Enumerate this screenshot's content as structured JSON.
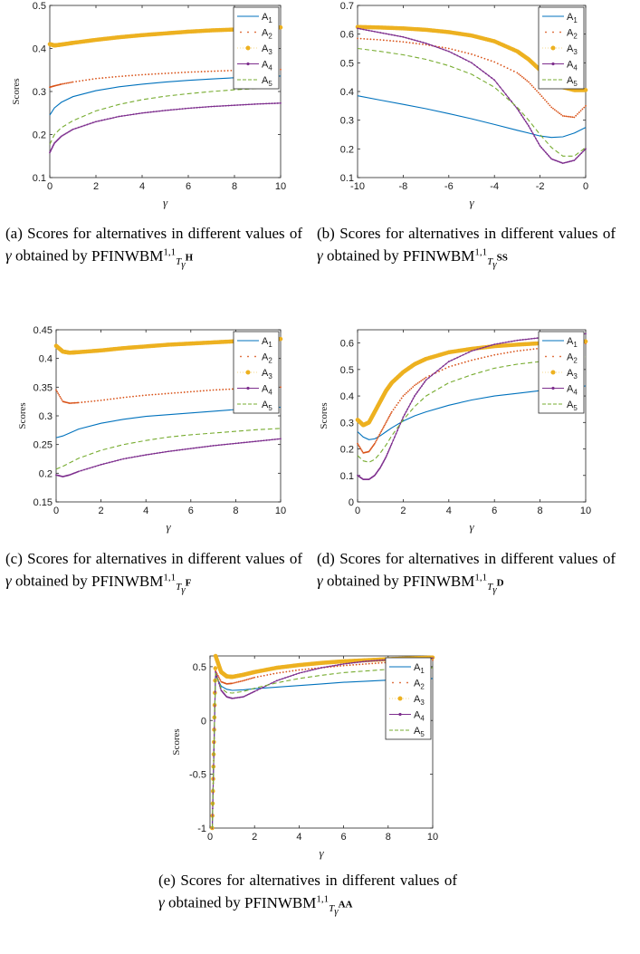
{
  "colors": {
    "A1": "#0072bd",
    "A2": "#d95319",
    "A3": "#edb120",
    "A4": "#7e2f8e",
    "A5": "#77ac30"
  },
  "legend": [
    "A1",
    "A2",
    "A3",
    "A4",
    "A5"
  ],
  "captions": [
    {
      "label": "(a)",
      "text_pre": "Scores for alternatives in different values of",
      "symbol": "γ",
      "text_post": "obtained by",
      "op": "PFINWBM",
      "sup": "1,1",
      "sub": "T",
      "subsub": "γ",
      "subsup": "H"
    },
    {
      "label": "(b)",
      "text_pre": "Scores for alternatives in different values of",
      "symbol": "γ",
      "text_post": "obtained by",
      "op": "PFINWBM",
      "sup": "1,1",
      "sub": "T",
      "subsub": "γ",
      "subsup": "SS"
    },
    {
      "label": "(c)",
      "text_pre": "Scores for alternatives in different values of",
      "symbol": "γ",
      "text_post": "obtained by",
      "op": "PFINWBM",
      "sup": "1,1",
      "sub": "T",
      "subsub": "γ",
      "subsup": "F"
    },
    {
      "label": "(d)",
      "text_pre": "Scores for alternatives in different values of",
      "symbol": "γ",
      "text_post": "obtained by",
      "op": "PFINWBM",
      "sup": "1,1",
      "sub": "T",
      "subsub": "γ",
      "subsup": "D"
    },
    {
      "label": "(e)",
      "text_pre": "Scores for alternatives in different values of",
      "symbol": "γ",
      "text_post": "obtained by",
      "op": "PFINWBM",
      "sup": "1,1",
      "sub": "T",
      "subsub": "γ",
      "subsup": "AA"
    }
  ],
  "chart_data": [
    {
      "type": "line",
      "xlabel": "γ",
      "ylabel": "Scores",
      "xlim": [
        0,
        10
      ],
      "ylim": [
        0.1,
        0.5
      ],
      "xticks": [
        0,
        2,
        4,
        6,
        8,
        10
      ],
      "yticks": [
        0.1,
        0.2,
        0.3,
        0.4,
        0.5
      ],
      "legend_position": "top-right",
      "x": [
        0,
        0.2,
        0.5,
        1,
        2,
        3,
        4,
        5,
        6,
        7,
        8,
        9,
        10
      ],
      "series": [
        {
          "name": "A1",
          "values": [
            0.245,
            0.262,
            0.275,
            0.288,
            0.302,
            0.311,
            0.317,
            0.322,
            0.326,
            0.329,
            0.332,
            0.334,
            0.336
          ]
        },
        {
          "name": "A2",
          "values": [
            0.31,
            0.313,
            0.317,
            0.322,
            0.33,
            0.335,
            0.339,
            0.342,
            0.345,
            0.347,
            0.349,
            0.35,
            0.351
          ]
        },
        {
          "name": "A3",
          "values": [
            0.41,
            0.407,
            0.409,
            0.413,
            0.42,
            0.426,
            0.431,
            0.435,
            0.439,
            0.442,
            0.444,
            0.447,
            0.449
          ]
        },
        {
          "name": "A4",
          "values": [
            0.158,
            0.18,
            0.196,
            0.212,
            0.23,
            0.242,
            0.25,
            0.256,
            0.261,
            0.265,
            0.268,
            0.271,
            0.273
          ]
        },
        {
          "name": "A5",
          "values": [
            0.177,
            0.2,
            0.216,
            0.232,
            0.255,
            0.27,
            0.281,
            0.289,
            0.295,
            0.3,
            0.304,
            0.307,
            0.31
          ]
        }
      ]
    },
    {
      "type": "line",
      "xlabel": "γ",
      "ylabel": "",
      "xlim": [
        -10,
        0
      ],
      "ylim": [
        0.1,
        0.7
      ],
      "xticks": [
        -10,
        -8,
        -6,
        -4,
        -2,
        0
      ],
      "yticks": [
        0.1,
        0.2,
        0.3,
        0.4,
        0.5,
        0.6,
        0.7
      ],
      "legend_position": "top-right",
      "x": [
        -10,
        -9,
        -8,
        -7,
        -6,
        -5,
        -4,
        -3,
        -2.5,
        -2,
        -1.5,
        -1,
        -0.5,
        0
      ],
      "series": [
        {
          "name": "A1",
          "values": [
            0.385,
            0.37,
            0.355,
            0.34,
            0.323,
            0.305,
            0.285,
            0.265,
            0.255,
            0.245,
            0.24,
            0.242,
            0.255,
            0.275
          ]
        },
        {
          "name": "A2",
          "values": [
            0.585,
            0.58,
            0.573,
            0.563,
            0.55,
            0.53,
            0.503,
            0.465,
            0.433,
            0.39,
            0.345,
            0.315,
            0.31,
            0.35
          ]
        },
        {
          "name": "A3",
          "values": [
            0.625,
            0.623,
            0.62,
            0.615,
            0.607,
            0.595,
            0.575,
            0.54,
            0.512,
            0.475,
            0.44,
            0.415,
            0.405,
            0.405
          ]
        },
        {
          "name": "A4",
          "values": [
            0.62,
            0.605,
            0.59,
            0.568,
            0.54,
            0.5,
            0.44,
            0.34,
            0.28,
            0.21,
            0.165,
            0.15,
            0.16,
            0.2
          ]
        },
        {
          "name": "A5",
          "values": [
            0.55,
            0.54,
            0.528,
            0.512,
            0.49,
            0.46,
            0.415,
            0.345,
            0.3,
            0.25,
            0.205,
            0.175,
            0.175,
            0.205
          ]
        }
      ]
    },
    {
      "type": "line",
      "xlabel": "γ",
      "ylabel": "Scores",
      "xlim": [
        0,
        10
      ],
      "ylim": [
        0.15,
        0.45
      ],
      "xticks": [
        0,
        2,
        4,
        6,
        8,
        10
      ],
      "yticks": [
        0.15,
        0.2,
        0.25,
        0.3,
        0.35,
        0.4,
        0.45
      ],
      "legend_position": "top-right",
      "x": [
        0,
        0.3,
        0.6,
        1,
        2,
        3,
        4,
        5,
        6,
        7,
        8,
        9,
        10
      ],
      "series": [
        {
          "name": "A1",
          "values": [
            0.262,
            0.265,
            0.27,
            0.277,
            0.287,
            0.294,
            0.299,
            0.302,
            0.305,
            0.308,
            0.311,
            0.313,
            0.315
          ]
        },
        {
          "name": "A2",
          "values": [
            0.345,
            0.325,
            0.322,
            0.323,
            0.327,
            0.332,
            0.336,
            0.339,
            0.342,
            0.345,
            0.347,
            0.349,
            0.35
          ]
        },
        {
          "name": "A3",
          "values": [
            0.422,
            0.412,
            0.41,
            0.411,
            0.414,
            0.418,
            0.421,
            0.424,
            0.426,
            0.428,
            0.43,
            0.432,
            0.434
          ]
        },
        {
          "name": "A4",
          "values": [
            0.197,
            0.194,
            0.197,
            0.203,
            0.215,
            0.225,
            0.232,
            0.238,
            0.243,
            0.248,
            0.252,
            0.256,
            0.26
          ]
        },
        {
          "name": "A5",
          "values": [
            0.207,
            0.212,
            0.218,
            0.226,
            0.24,
            0.25,
            0.257,
            0.263,
            0.267,
            0.27,
            0.273,
            0.276,
            0.278
          ]
        }
      ]
    },
    {
      "type": "line",
      "xlabel": "γ",
      "ylabel": "Scores",
      "xlim": [
        0,
        10
      ],
      "ylim": [
        0,
        0.65
      ],
      "xticks": [
        0,
        2,
        4,
        6,
        8,
        10
      ],
      "yticks": [
        0,
        0.1,
        0.2,
        0.3,
        0.4,
        0.5,
        0.6
      ],
      "legend_position": "top-right",
      "x": [
        0,
        0.25,
        0.5,
        0.75,
        1,
        1.25,
        1.5,
        2,
        2.5,
        3,
        4,
        5,
        6,
        7,
        8,
        9,
        10
      ],
      "series": [
        {
          "name": "A1",
          "values": [
            0.265,
            0.245,
            0.235,
            0.238,
            0.25,
            0.265,
            0.28,
            0.305,
            0.325,
            0.34,
            0.365,
            0.385,
            0.4,
            0.41,
            0.42,
            0.43,
            0.438
          ]
        },
        {
          "name": "A2",
          "values": [
            0.22,
            0.185,
            0.19,
            0.22,
            0.26,
            0.3,
            0.34,
            0.4,
            0.44,
            0.47,
            0.51,
            0.535,
            0.555,
            0.57,
            0.58,
            0.59,
            0.598
          ]
        },
        {
          "name": "A3",
          "values": [
            0.31,
            0.29,
            0.3,
            0.34,
            0.38,
            0.42,
            0.45,
            0.49,
            0.52,
            0.54,
            0.565,
            0.578,
            0.588,
            0.594,
            0.599,
            0.603,
            0.606
          ]
        },
        {
          "name": "A4",
          "values": [
            0.1,
            0.085,
            0.085,
            0.1,
            0.13,
            0.17,
            0.22,
            0.32,
            0.4,
            0.46,
            0.53,
            0.57,
            0.595,
            0.61,
            0.62,
            0.628,
            0.635
          ]
        },
        {
          "name": "A5",
          "values": [
            0.175,
            0.155,
            0.15,
            0.16,
            0.185,
            0.215,
            0.25,
            0.31,
            0.36,
            0.4,
            0.45,
            0.48,
            0.505,
            0.52,
            0.53,
            0.54,
            0.548
          ]
        }
      ]
    },
    {
      "type": "line",
      "xlabel": "γ",
      "ylabel": "Scores",
      "xlim": [
        0,
        10
      ],
      "ylim": [
        -1,
        0.6
      ],
      "xticks": [
        0,
        2,
        4,
        6,
        8,
        10
      ],
      "yticks": [
        -1,
        -0.5,
        0,
        0.5
      ],
      "legend_position": "top-right",
      "x": [
        0.1,
        0.25,
        0.5,
        0.75,
        1,
        1.5,
        2,
        3,
        4,
        5,
        6,
        7,
        8,
        9,
        10
      ],
      "series": [
        {
          "name": "A1",
          "values": [
            -1,
            0.42,
            0.32,
            0.29,
            0.28,
            0.285,
            0.295,
            0.31,
            0.325,
            0.34,
            0.355,
            0.365,
            0.375,
            0.385,
            0.39
          ]
        },
        {
          "name": "A2",
          "values": [
            -1,
            0.46,
            0.36,
            0.34,
            0.345,
            0.37,
            0.4,
            0.44,
            0.47,
            0.49,
            0.51,
            0.525,
            0.54,
            0.55,
            0.56
          ]
        },
        {
          "name": "A3",
          "values": [
            -1,
            0.6,
            0.45,
            0.41,
            0.405,
            0.425,
            0.45,
            0.49,
            0.515,
            0.535,
            0.55,
            0.56,
            0.57,
            0.578,
            0.585
          ]
        },
        {
          "name": "A4",
          "values": [
            -1,
            0.45,
            0.28,
            0.22,
            0.205,
            0.22,
            0.27,
            0.37,
            0.44,
            0.49,
            0.525,
            0.55,
            0.565,
            0.575,
            0.58
          ]
        },
        {
          "name": "A5",
          "values": [
            -1,
            0.44,
            0.3,
            0.26,
            0.255,
            0.27,
            0.3,
            0.35,
            0.39,
            0.42,
            0.445,
            0.46,
            0.475,
            0.485,
            0.49
          ]
        }
      ]
    }
  ]
}
